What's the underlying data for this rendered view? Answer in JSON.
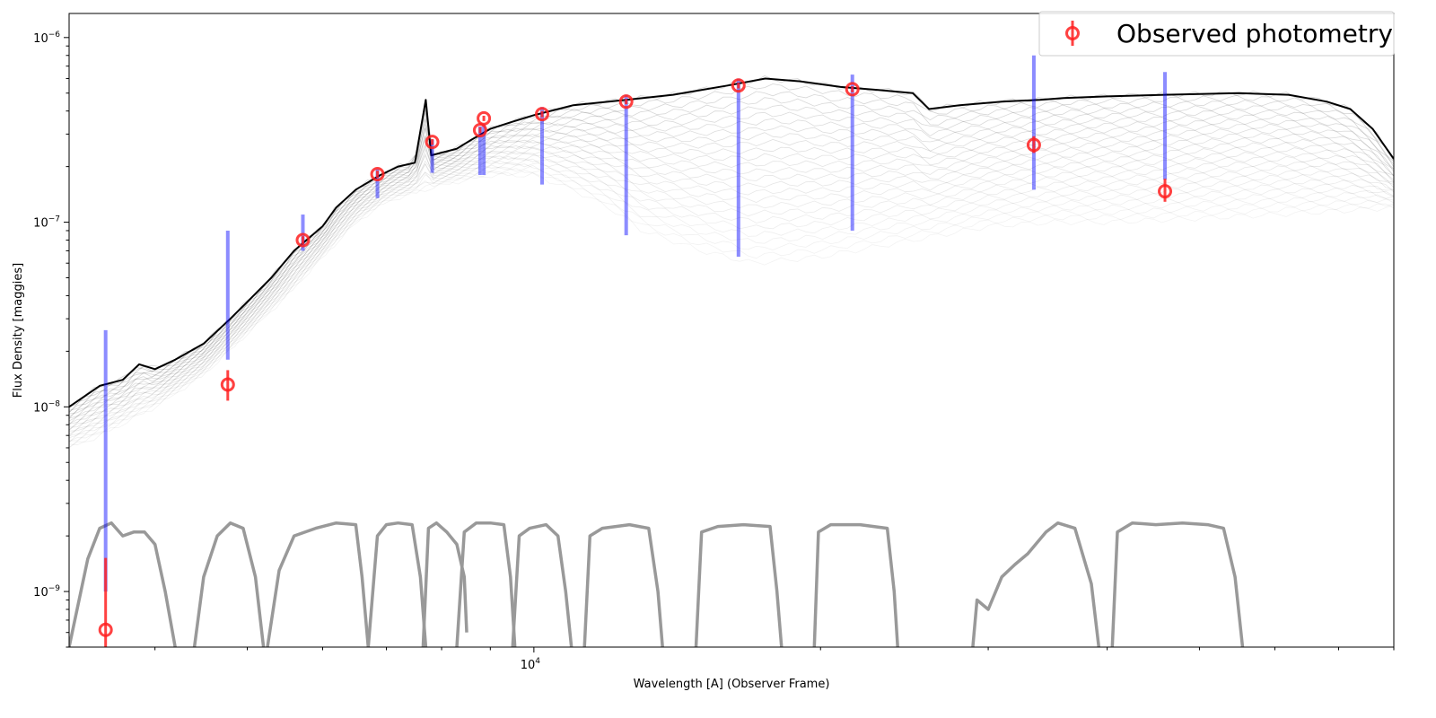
{
  "chart_data": {
    "type": "line",
    "title": "",
    "xlabel": "Wavelength [A] (Observer Frame)",
    "ylabel": "Flux Density [maggies]",
    "x_scale": "log",
    "y_scale": "log",
    "xlim": [
      3250,
      80000
    ],
    "ylim": [
      5e-10,
      1.35e-06
    ],
    "x_ticks": [
      {
        "value": 10000,
        "base": "10",
        "exp": "4"
      }
    ],
    "y_ticks": [
      {
        "value": 1e-09,
        "base": "10",
        "exp": "−9"
      },
      {
        "value": 1e-08,
        "base": "10",
        "exp": "−8"
      },
      {
        "value": 1e-07,
        "base": "10",
        "exp": "−7"
      },
      {
        "value": 1e-06,
        "base": "10",
        "exp": "−6"
      }
    ],
    "grid": false,
    "legend": {
      "placement": "top-right",
      "entries": [
        "Observed photometry"
      ]
    },
    "colors": {
      "photometry": "#ff2020",
      "model_photometry": "#0000ff",
      "sed": "#000000",
      "filters": "#999999"
    },
    "observed_photometry": [
      {
        "x": 3550,
        "y": 6.2e-10,
        "err_lo": 1.2e-10,
        "err_hi": 9e-10
      },
      {
        "x": 4770,
        "y": 1.32e-08,
        "err_lo": 2.4e-09,
        "err_hi": 2.6e-09
      },
      {
        "x": 5720,
        "y": 8e-08,
        "err_lo": 4e-09,
        "err_hi": 4e-09
      },
      {
        "x": 6850,
        "y": 1.82e-07,
        "err_lo": 8e-09,
        "err_hi": 8e-09
      },
      {
        "x": 7820,
        "y": 2.72e-07,
        "err_lo": 1e-08,
        "err_hi": 1e-08
      },
      {
        "x": 8780,
        "y": 3.15e-07,
        "err_lo": 1.2e-08,
        "err_hi": 1.2e-08
      },
      {
        "x": 8860,
        "y": 3.65e-07,
        "err_lo": 1.2e-08,
        "err_hi": 1.2e-08
      },
      {
        "x": 10200,
        "y": 3.85e-07,
        "err_lo": 1.5e-08,
        "err_hi": 1.5e-08
      },
      {
        "x": 12500,
        "y": 4.5e-07,
        "err_lo": 1.5e-08,
        "err_hi": 1.5e-08
      },
      {
        "x": 16400,
        "y": 5.5e-07,
        "err_lo": 2e-08,
        "err_hi": 2e-08
      },
      {
        "x": 21600,
        "y": 5.25e-07,
        "err_lo": 2e-08,
        "err_hi": 2e-08
      },
      {
        "x": 33500,
        "y": 2.62e-07,
        "err_lo": 2.5e-08,
        "err_hi": 3e-08
      },
      {
        "x": 46000,
        "y": 1.47e-07,
        "err_lo": 1.8e-08,
        "err_hi": 2.5e-08
      }
    ],
    "model_photometry_ranges": [
      {
        "x": 3550,
        "y_min": 1e-09,
        "y_max": 2.6e-08
      },
      {
        "x": 4770,
        "y_min": 1.8e-08,
        "y_max": 9e-08
      },
      {
        "x": 5720,
        "y_min": 7e-08,
        "y_max": 1.1e-07
      },
      {
        "x": 6850,
        "y_min": 1.35e-07,
        "y_max": 1.95e-07
      },
      {
        "x": 7820,
        "y_min": 1.85e-07,
        "y_max": 2.8e-07
      },
      {
        "x": 8780,
        "y_min": 1.8e-07,
        "y_max": 3.3e-07
      },
      {
        "x": 8860,
        "y_min": 1.8e-07,
        "y_max": 3.4e-07
      },
      {
        "x": 10200,
        "y_min": 1.6e-07,
        "y_max": 4.2e-07
      },
      {
        "x": 12500,
        "y_min": 8.5e-08,
        "y_max": 4.9e-07
      },
      {
        "x": 16400,
        "y_min": 6.5e-08,
        "y_max": 6e-07
      },
      {
        "x": 21600,
        "y_min": 9e-08,
        "y_max": 6.3e-07
      },
      {
        "x": 33500,
        "y_min": 1.5e-07,
        "y_max": 8e-07
      },
      {
        "x": 46000,
        "y_min": 1.7e-07,
        "y_max": 6.5e-07
      }
    ],
    "sed_best_fit": [
      [
        3250,
        1e-08
      ],
      [
        3500,
        1.3e-08
      ],
      [
        3700,
        1.4e-08
      ],
      [
        3850,
        1.7e-08
      ],
      [
        4000,
        1.6e-08
      ],
      [
        4200,
        1.8e-08
      ],
      [
        4500,
        2.2e-08
      ],
      [
        4800,
        3e-08
      ],
      [
        5000,
        3.7e-08
      ],
      [
        5300,
        5e-08
      ],
      [
        5600,
        7e-08
      ],
      [
        6000,
        9.5e-08
      ],
      [
        6200,
        1.2e-07
      ],
      [
        6500,
        1.5e-07
      ],
      [
        6900,
        1.8e-07
      ],
      [
        7200,
        2e-07
      ],
      [
        7500,
        2.1e-07
      ],
      [
        7700,
        4.6e-07
      ],
      [
        7800,
        2.3e-07
      ],
      [
        8300,
        2.5e-07
      ],
      [
        8600,
        2.8e-07
      ],
      [
        9000,
        3.2e-07
      ],
      [
        9500,
        3.5e-07
      ],
      [
        10000,
        3.8e-07
      ],
      [
        11000,
        4.3e-07
      ],
      [
        12500,
        4.6e-07
      ],
      [
        14000,
        4.9e-07
      ],
      [
        16000,
        5.5e-07
      ],
      [
        17500,
        6e-07
      ],
      [
        19000,
        5.8e-07
      ],
      [
        21000,
        5.4e-07
      ],
      [
        23000,
        5.2e-07
      ],
      [
        25000,
        5e-07
      ],
      [
        26000,
        4.1e-07
      ],
      [
        28000,
        4.3e-07
      ],
      [
        31000,
        4.5e-07
      ],
      [
        34000,
        4.6e-07
      ],
      [
        36000,
        4.7e-07
      ],
      [
        40000,
        4.8e-07
      ],
      [
        46000,
        4.9e-07
      ],
      [
        55000,
        5e-07
      ],
      [
        62000,
        4.9e-07
      ],
      [
        68000,
        4.5e-07
      ],
      [
        72000,
        4.1e-07
      ],
      [
        76000,
        3.2e-07
      ],
      [
        80000,
        2.2e-07
      ]
    ],
    "sed_lower_envelope": [
      [
        3250,
        6e-09
      ],
      [
        3500,
        7e-09
      ],
      [
        4000,
        1e-08
      ],
      [
        4500,
        1.5e-08
      ],
      [
        5000,
        2.5e-08
      ],
      [
        5500,
        4e-08
      ],
      [
        6000,
        6.5e-08
      ],
      [
        6500,
        1e-07
      ],
      [
        7000,
        1.3e-07
      ],
      [
        8000,
        1.6e-07
      ],
      [
        9000,
        1.8e-07
      ],
      [
        10000,
        1.8e-07
      ],
      [
        11000,
        1.5e-07
      ],
      [
        12000,
        1.2e-07
      ],
      [
        13000,
        9e-08
      ],
      [
        15000,
        7e-08
      ],
      [
        17000,
        6e-08
      ],
      [
        20000,
        6.5e-08
      ],
      [
        25000,
        8e-08
      ],
      [
        30000,
        9.5e-08
      ],
      [
        35000,
        1e-07
      ],
      [
        40000,
        1e-07
      ],
      [
        50000,
        1.05e-07
      ],
      [
        60000,
        1.1e-07
      ],
      [
        70000,
        1.15e-07
      ],
      [
        80000,
        1.2e-07
      ]
    ],
    "filter_curves": [
      [
        [
          3250,
          5e-10
        ],
        [
          3400,
          1.5e-09
        ],
        [
          3500,
          2.2e-09
        ],
        [
          3600,
          2.35e-09
        ],
        [
          3700,
          2e-09
        ],
        [
          3800,
          2.1e-09
        ],
        [
          3900,
          2.1e-09
        ],
        [
          4000,
          1.8e-09
        ],
        [
          4100,
          1e-09
        ],
        [
          4200,
          5e-10
        ]
      ],
      [
        [
          4400,
          5e-10
        ],
        [
          4500,
          1.2e-09
        ],
        [
          4650,
          2e-09
        ],
        [
          4800,
          2.35e-09
        ],
        [
          4950,
          2.2e-09
        ],
        [
          5100,
          1.2e-09
        ],
        [
          5200,
          5e-10
        ]
      ],
      [
        [
          5250,
          5e-10
        ],
        [
          5400,
          1.3e-09
        ],
        [
          5600,
          2e-09
        ],
        [
          5900,
          2.2e-09
        ],
        [
          6200,
          2.35e-09
        ],
        [
          6500,
          2.3e-09
        ],
        [
          6600,
          1.2e-09
        ],
        [
          6700,
          5e-10
        ]
      ],
      [
        [
          6700,
          5e-10
        ],
        [
          6850,
          2e-09
        ],
        [
          7000,
          2.3e-09
        ],
        [
          7200,
          2.35e-09
        ],
        [
          7450,
          2.3e-09
        ],
        [
          7600,
          1.2e-09
        ],
        [
          7700,
          5e-10
        ]
      ],
      [
        [
          7650,
          5e-10
        ],
        [
          7750,
          2.2e-09
        ],
        [
          7900,
          2.35e-09
        ],
        [
          8100,
          2.1e-09
        ],
        [
          8300,
          1.8e-09
        ],
        [
          8450,
          1.2e-09
        ],
        [
          8500,
          6e-10
        ]
      ],
      [
        [
          8300,
          5e-10
        ],
        [
          8450,
          2.1e-09
        ],
        [
          8700,
          2.35e-09
        ],
        [
          9000,
          2.35e-09
        ],
        [
          9300,
          2.3e-09
        ],
        [
          9450,
          1.2e-09
        ],
        [
          9550,
          5e-10
        ]
      ],
      [
        [
          9500,
          5e-10
        ],
        [
          9650,
          2e-09
        ],
        [
          9900,
          2.2e-09
        ],
        [
          10300,
          2.3e-09
        ],
        [
          10600,
          2e-09
        ],
        [
          10800,
          1e-09
        ],
        [
          10950,
          5e-10
        ]
      ],
      [
        [
          11300,
          5e-10
        ],
        [
          11450,
          2e-09
        ],
        [
          11800,
          2.2e-09
        ],
        [
          12600,
          2.3e-09
        ],
        [
          13200,
          2.2e-09
        ],
        [
          13500,
          1e-09
        ],
        [
          13650,
          5e-10
        ]
      ],
      [
        [
          14800,
          5e-10
        ],
        [
          15000,
          2.1e-09
        ],
        [
          15600,
          2.25e-09
        ],
        [
          16600,
          2.3e-09
        ],
        [
          17700,
          2.25e-09
        ],
        [
          18000,
          1e-09
        ],
        [
          18200,
          5e-10
        ]
      ],
      [
        [
          19700,
          5e-10
        ],
        [
          19900,
          2.1e-09
        ],
        [
          20500,
          2.3e-09
        ],
        [
          22000,
          2.3e-09
        ],
        [
          23500,
          2.2e-09
        ],
        [
          23900,
          1e-09
        ],
        [
          24100,
          5e-10
        ]
      ],
      [
        [
          28900,
          5e-10
        ],
        [
          29200,
          9e-10
        ],
        [
          30000,
          8e-10
        ],
        [
          31000,
          1.2e-09
        ],
        [
          32000,
          1.4e-09
        ],
        [
          33000,
          1.6e-09
        ],
        [
          34500,
          2.1e-09
        ],
        [
          35500,
          2.35e-09
        ],
        [
          37000,
          2.2e-09
        ],
        [
          38500,
          1.1e-09
        ],
        [
          39200,
          5e-10
        ]
      ],
      [
        [
          40500,
          5e-10
        ],
        [
          41000,
          2.1e-09
        ],
        [
          42500,
          2.35e-09
        ],
        [
          45000,
          2.3e-09
        ],
        [
          48000,
          2.35e-09
        ],
        [
          51000,
          2.3e-09
        ],
        [
          53000,
          2.2e-09
        ],
        [
          54500,
          1.2e-09
        ],
        [
          55500,
          5e-10
        ]
      ]
    ]
  }
}
